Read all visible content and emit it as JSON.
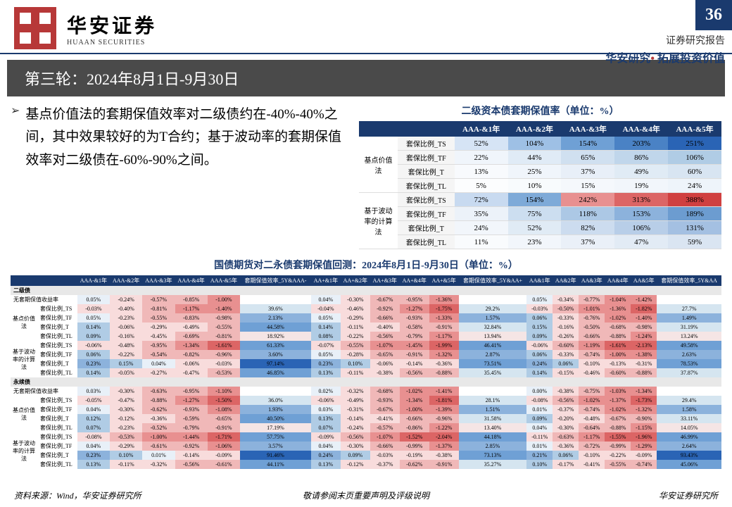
{
  "header": {
    "logo_cn": "华安证券",
    "logo_en": "HUAAN SECURITIES",
    "page_num": "36",
    "report_type": "证券研究报告",
    "tagline_left": "华安研究",
    "tagline_right": "拓展投资价值"
  },
  "title": "第三轮：2024年8月1日-9月30日",
  "bullet": "基点价值法的套期保值效率对二级债约在-40%-40%之间，其中效果较好的为T合约；基于波动率的套期保值效率对二级债在-60%-90%之间。",
  "table1": {
    "title": "二级资本债套期保值率（单位：%）",
    "cols": [
      "AAA-&1年",
      "AAA-&2年",
      "AAA-&3年",
      "AAA-&4年",
      "AAA-&5年"
    ],
    "groups": [
      {
        "name": "基点价值法",
        "rows": [
          {
            "label": "套保比例_TS",
            "vals": [
              "52%",
              "104%",
              "154%",
              "203%",
              "251%"
            ],
            "colors": [
              "#d6e4f5",
              "#9ec0e5",
              "#6fa0d5",
              "#4a82c5",
              "#2a64b5"
            ]
          },
          {
            "label": "套保比例_TF",
            "vals": [
              "22%",
              "44%",
              "65%",
              "86%",
              "106%"
            ],
            "colors": [
              "#f0f5fb",
              "#e0ebf6",
              "#d0e0f0",
              "#c0d6eb",
              "#b0cce5"
            ]
          },
          {
            "label": "套保比例_T",
            "vals": [
              "13%",
              "25%",
              "37%",
              "49%",
              "60%"
            ],
            "colors": [
              "#f8fafd",
              "#f0f5fb",
              "#e8eff8",
              "#e0ebf5",
              "#d8e5f2"
            ]
          },
          {
            "label": "套保比例_TL",
            "vals": [
              "5%",
              "10%",
              "15%",
              "19%",
              "24%"
            ],
            "colors": [
              "#fcfdfe",
              "#f8fbfd",
              "#f5f8fc",
              "#f2f6fb",
              "#eef4fa"
            ]
          }
        ]
      },
      {
        "name": "基于波动率的计算法",
        "rows": [
          {
            "label": "套保比例_TS",
            "vals": [
              "72%",
              "154%",
              "242%",
              "313%",
              "388%"
            ],
            "colors": [
              "#c8daf0",
              "#7eaad8",
              "#e89090",
              "#dc6565",
              "#d04040"
            ]
          },
          {
            "label": "套保比例_TF",
            "vals": [
              "35%",
              "75%",
              "118%",
              "153%",
              "189%"
            ],
            "colors": [
              "#ecf2f9",
              "#ccdef0",
              "#acc8e5",
              "#8cb2dc",
              "#6c9cd0"
            ]
          },
          {
            "label": "套保比例_T",
            "vals": [
              "24%",
              "52%",
              "82%",
              "106%",
              "131%"
            ],
            "colors": [
              "#f2f6fb",
              "#e0ebf5",
              "#ccdcef",
              "#b8cee8",
              "#a4c0e2"
            ]
          },
          {
            "label": "套保比例_TL",
            "vals": [
              "11%",
              "23%",
              "37%",
              "47%",
              "59%"
            ],
            "colors": [
              "#f9fbfd",
              "#f2f6fb",
              "#eaf0f8",
              "#e2ebf5",
              "#dae5f2"
            ]
          }
        ]
      }
    ]
  },
  "table2": {
    "title": "国债期货对二永债套期保值回测：2024年8月1日-9月30日（单位：%）",
    "col_groups": [
      [
        "AAA-&1年",
        "AAA-&2年",
        "AAA-&3年",
        "AAA-&4年",
        "AAA-&5年",
        "套期保值效率_5Y&AAA-"
      ],
      [
        "AA+&1年",
        "AA+&2年",
        "AA+&3年",
        "AA+&4年",
        "AA+&5年",
        "套期保值效率_5Y&AA+"
      ],
      [
        "AA&1年",
        "AA&2年",
        "AA&3年",
        "AA&4年",
        "AA&5年",
        "套期保值效率_5Y&AA"
      ]
    ],
    "sections": [
      {
        "name": "二级债",
        "row_base": {
          "label": "无套期保值收益率",
          "v": [
            "0.05%",
            "-0.24%",
            "-0.57%",
            "-0.85%",
            "-1.00%",
            "",
            "0.04%",
            "-0.30%",
            "-0.67%",
            "-0.95%",
            "-1.36%",
            "",
            "0.05%",
            "-0.34%",
            "-0.77%",
            "-1.04%",
            "-1.42%",
            ""
          ]
        },
        "groups": [
          {
            "name": "基点价值法",
            "rows": [
              {
                "label": "套保比例_TS",
                "v": [
                  "-0.03%",
                  "-0.40%",
                  "-0.81%",
                  "-1.17%",
                  "-1.40%",
                  "39.6%",
                  "-0.04%",
                  "-0.46%",
                  "-0.92%",
                  "-1.27%",
                  "-1.75%",
                  "29.2%",
                  "-0.03%",
                  "-0.50%",
                  "-1.01%",
                  "-1.36%",
                  "-1.82%",
                  "27.7%"
                ]
              },
              {
                "label": "套保比例_TF",
                "v": [
                  "0.05%",
                  "-0.23%",
                  "-0.55%",
                  "-0.83%",
                  "-0.98%",
                  "2.13%",
                  "0.05%",
                  "-0.29%",
                  "-0.66%",
                  "-0.93%",
                  "-1.33%",
                  "1.57%",
                  "0.06%",
                  "-0.33%",
                  "-0.76%",
                  "-1.02%",
                  "-1.40%",
                  "1.49%"
                ]
              },
              {
                "label": "套保比例_T",
                "v": [
                  "0.14%",
                  "-0.06%",
                  "-0.29%",
                  "-0.49%",
                  "-0.55%",
                  "44.58%",
                  "0.14%",
                  "-0.11%",
                  "-0.40%",
                  "-0.58%",
                  "-0.91%",
                  "32.84%",
                  "0.15%",
                  "-0.16%",
                  "-0.50%",
                  "-0.68%",
                  "-0.98%",
                  "31.19%"
                ]
              },
              {
                "label": "套保比例_TL",
                "v": [
                  "0.09%",
                  "-0.16%",
                  "-0.45%",
                  "-0.69%",
                  "-0.81%",
                  "18.92%",
                  "0.08%",
                  "-0.22%",
                  "-0.56%",
                  "-0.79%",
                  "-1.17%",
                  "13.94%",
                  "0.09%",
                  "-0.26%",
                  "-0.66%",
                  "-0.88%",
                  "-1.24%",
                  "13.24%"
                ]
              }
            ]
          },
          {
            "name": "基于波动率的计算法",
            "rows": [
              {
                "label": "套保比例_TS",
                "v": [
                  "-0.06%",
                  "-0.48%",
                  "-0.95%",
                  "-1.34%",
                  "-1.61%",
                  "61.33%",
                  "-0.07%",
                  "-0.55%",
                  "-1.07%",
                  "-1.45%",
                  "-1.99%",
                  "46.41%",
                  "-0.06%",
                  "-0.60%",
                  "-1.19%",
                  "-1.61%",
                  "-2.13%",
                  "49.58%"
                ]
              },
              {
                "label": "套保比例_TF",
                "v": [
                  "0.06%",
                  "-0.22%",
                  "-0.54%",
                  "-0.82%",
                  "-0.96%",
                  "3.60%",
                  "0.05%",
                  "-0.28%",
                  "-0.65%",
                  "-0.91%",
                  "-1.32%",
                  "2.87%",
                  "0.06%",
                  "-0.33%",
                  "-0.74%",
                  "-1.00%",
                  "-1.38%",
                  "2.63%"
                ]
              },
              {
                "label": "套保比例_T",
                "v": [
                  "0.23%",
                  "0.15%",
                  "0.04%",
                  "-0.06%",
                  "-0.03%",
                  "97.14%",
                  "0.23%",
                  "0.10%",
                  "-0.06%",
                  "-0.14%",
                  "-0.36%",
                  "73.51%",
                  "0.24%",
                  "0.06%",
                  "-0.10%",
                  "-0.13%",
                  "-0.31%",
                  "78.53%"
                ]
              },
              {
                "label": "套保比例_TL",
                "v": [
                  "0.14%",
                  "-0.05%",
                  "-0.27%",
                  "-0.47%",
                  "-0.53%",
                  "46.85%",
                  "0.13%",
                  "-0.11%",
                  "-0.38%",
                  "-0.56%",
                  "-0.88%",
                  "35.45%",
                  "0.14%",
                  "-0.15%",
                  "-0.46%",
                  "-0.60%",
                  "-0.88%",
                  "37.87%"
                ]
              }
            ]
          }
        ]
      },
      {
        "name": "永续债",
        "row_base": {
          "label": "无套期保值收益率",
          "v": [
            "0.03%",
            "-0.30%",
            "-0.63%",
            "-0.95%",
            "-1.10%",
            "",
            "0.02%",
            "-0.32%",
            "-0.68%",
            "-1.02%",
            "-1.41%",
            "",
            "0.00%",
            "-0.38%",
            "-0.75%",
            "-1.03%",
            "-1.34%",
            ""
          ]
        },
        "groups": [
          {
            "name": "基点价值法",
            "rows": [
              {
                "label": "套保比例_TS",
                "v": [
                  "-0.05%",
                  "-0.47%",
                  "-0.88%",
                  "-1.27%",
                  "-1.50%",
                  "36.0%",
                  "-0.06%",
                  "-0.49%",
                  "-0.93%",
                  "-1.34%",
                  "-1.81%",
                  "28.1%",
                  "-0.08%",
                  "-0.56%",
                  "-1.02%",
                  "-1.37%",
                  "-1.73%",
                  "29.4%"
                ]
              },
              {
                "label": "套保比例_TF",
                "v": [
                  "0.04%",
                  "-0.30%",
                  "-0.62%",
                  "-0.93%",
                  "-1.08%",
                  "1.93%",
                  "0.03%",
                  "-0.31%",
                  "-0.67%",
                  "-1.00%",
                  "-1.39%",
                  "1.51%",
                  "0.01%",
                  "-0.37%",
                  "-0.74%",
                  "-1.02%",
                  "-1.32%",
                  "1.58%"
                ]
              },
              {
                "label": "套保比例_T",
                "v": [
                  "0.12%",
                  "-0.12%",
                  "-0.36%",
                  "-0.59%",
                  "-0.65%",
                  "40.50%",
                  "0.13%",
                  "-0.14%",
                  "-0.41%",
                  "-0.66%",
                  "-0.96%",
                  "31.58%",
                  "0.09%",
                  "-0.20%",
                  "-0.48%",
                  "-0.67%",
                  "-0.90%",
                  "33.11%"
                ]
              },
              {
                "label": "套保比例_TL",
                "v": [
                  "0.07%",
                  "-0.23%",
                  "-0.52%",
                  "-0.79%",
                  "-0.91%",
                  "17.19%",
                  "0.07%",
                  "-0.24%",
                  "-0.57%",
                  "-0.86%",
                  "-1.22%",
                  "13.40%",
                  "0.04%",
                  "-0.30%",
                  "-0.64%",
                  "-0.88%",
                  "-1.15%",
                  "14.05%"
                ]
              }
            ]
          },
          {
            "name": "基于波动率的计算法",
            "rows": [
              {
                "label": "套保比例_TS",
                "v": [
                  "-0.08%",
                  "-0.53%",
                  "-1.00%",
                  "-1.44%",
                  "-1.71%",
                  "57.75%",
                  "-0.09%",
                  "-0.56%",
                  "-1.07%",
                  "-1.52%",
                  "-2.04%",
                  "44.18%",
                  "-0.11%",
                  "-0.63%",
                  "-1.17%",
                  "-1.55%",
                  "-1.96%",
                  "46.99%"
                ]
              },
              {
                "label": "套保比例_TF",
                "v": [
                  "0.04%",
                  "-0.29%",
                  "-0.61%",
                  "-0.92%",
                  "-1.06%",
                  "3.57%",
                  "0.04%",
                  "-0.30%",
                  "-0.66%",
                  "-0.99%",
                  "-1.37%",
                  "2.85%",
                  "0.01%",
                  "-0.36%",
                  "-0.72%",
                  "-0.99%",
                  "-1.29%",
                  "2.64%"
                ]
              },
              {
                "label": "套保比例_T",
                "v": [
                  "0.23%",
                  "0.10%",
                  "0.01%",
                  "-0.14%",
                  "-0.09%",
                  "91.46%",
                  "0.24%",
                  "0.09%",
                  "-0.03%",
                  "-0.19%",
                  "-0.38%",
                  "73.13%",
                  "0.21%",
                  "0.06%",
                  "-0.10%",
                  "-0.22%",
                  "-0.09%",
                  "93.43%"
                ]
              },
              {
                "label": "套保比例_TL",
                "v": [
                  "0.13%",
                  "-0.11%",
                  "-0.32%",
                  "-0.56%",
                  "-0.61%",
                  "44.11%",
                  "0.13%",
                  "-0.12%",
                  "-0.37%",
                  "-0.62%",
                  "-0.91%",
                  "35.27%",
                  "0.10%",
                  "-0.17%",
                  "-0.41%",
                  "-0.55%",
                  "-0.74%",
                  "45.06%"
                ]
              }
            ]
          }
        ]
      }
    ]
  },
  "footer": {
    "left": "资料来源：Wind，华安证券研究所",
    "center": "敬请参阅末页重要声明及评级说明",
    "right": "华安证券研究所"
  },
  "heat": {
    "neg_mild": "#f8dcdc",
    "neg_med": "#f0b8b8",
    "neg_strong": "#e89090",
    "neg_deep": "#dc6565",
    "pos_mild": "#e8f0f8",
    "pos_med": "#cfe0f0",
    "pos_strong": "#b0cce5",
    "pos_deep": "#8cb2dc",
    "eff_low": "#f5e5e5",
    "eff_mid": "#d5e5f0",
    "eff_high": "#6fa0d5",
    "eff_vhigh": "#2a64b5"
  }
}
